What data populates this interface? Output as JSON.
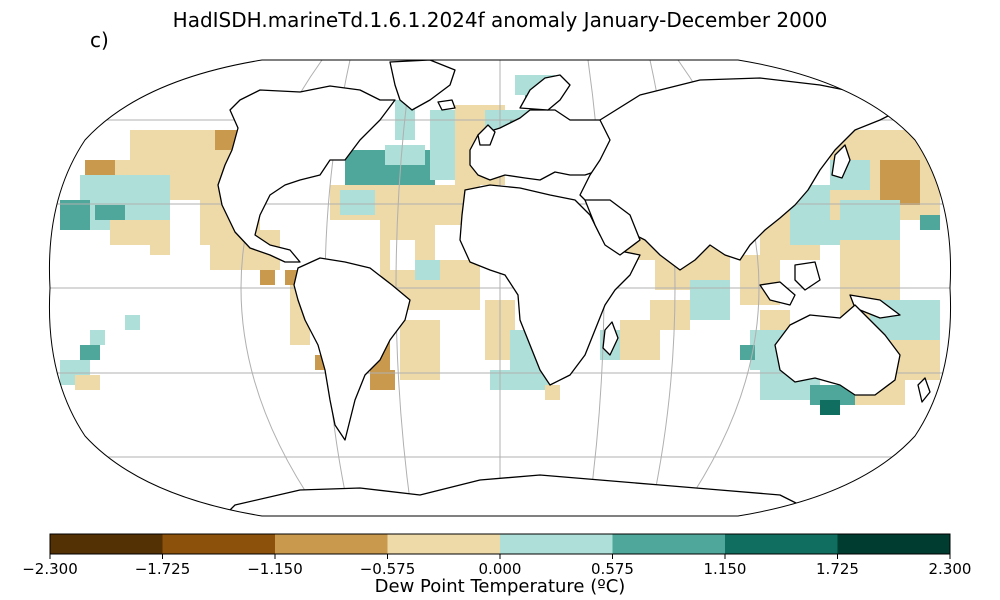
{
  "title": "HadISDH.marineTd.1.6.1.2024f anomaly January-December 2000",
  "panel_label": "c)",
  "colorbar": {
    "label": "Dew Point Temperature (ºC)",
    "ticks": [
      "−2.300",
      "−1.725",
      "−1.150",
      "−0.575",
      "0.000",
      "0.575",
      "1.150",
      "1.725",
      "2.300"
    ],
    "colors": [
      "#543005",
      "#8c510a",
      "#c99a4e",
      "#eed9a8",
      "#aedfd8",
      "#4fa79b",
      "#0f6e60",
      "#003c30"
    ]
  },
  "map": {
    "projection": "Robinson",
    "grid": true,
    "land_color": "#ffffff",
    "coastline_color": "#000000"
  }
}
